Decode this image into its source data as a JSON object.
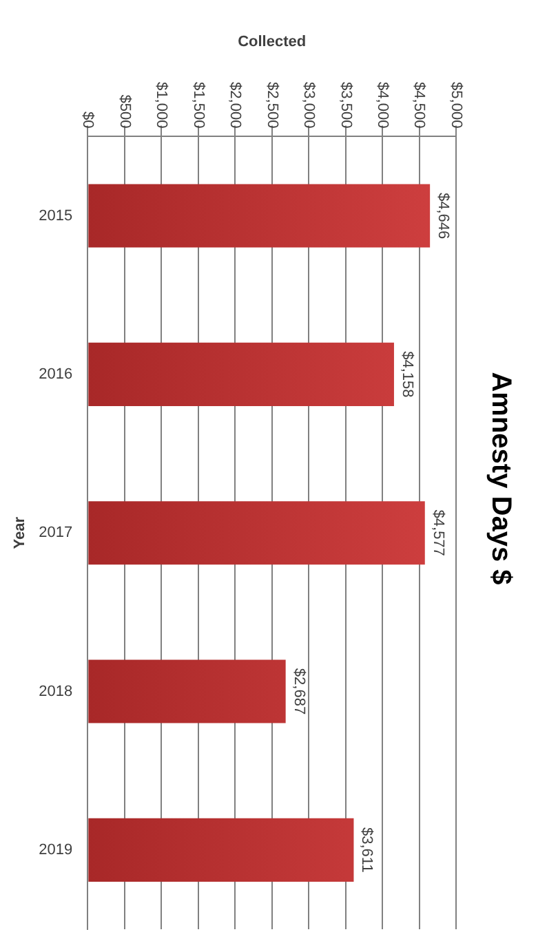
{
  "chart_data": {
    "type": "bar",
    "orientation": "horizontal",
    "title": "Amnesty Days $",
    "xlabel": "Collected",
    "ylabel": "Year",
    "categories": [
      "2015",
      "2016",
      "2017",
      "2018",
      "2019"
    ],
    "values": [
      4646,
      4158,
      4577,
      2687,
      3611
    ],
    "color": "#d04040",
    "value_labels": [
      "$4,646",
      "$4,158",
      "$4,577",
      "$2,687",
      "$3,611"
    ],
    "xlim": [
      0,
      5000
    ],
    "xticks": [
      {
        "value": 0,
        "label": "$0"
      },
      {
        "value": 500,
        "label": "$500"
      },
      {
        "value": 1000,
        "label": "$1,000"
      },
      {
        "value": 1500,
        "label": "$1,500"
      },
      {
        "value": 2000,
        "label": "$2,000"
      },
      {
        "value": 2500,
        "label": "$2,500"
      },
      {
        "value": 3000,
        "label": "$3,000"
      },
      {
        "value": 3500,
        "label": "$3,500"
      },
      {
        "value": 4000,
        "label": "$4,000"
      },
      {
        "value": 4500,
        "label": "$4,500"
      },
      {
        "value": 5000,
        "label": "$5,000"
      }
    ],
    "grid": "x",
    "legend": false
  }
}
